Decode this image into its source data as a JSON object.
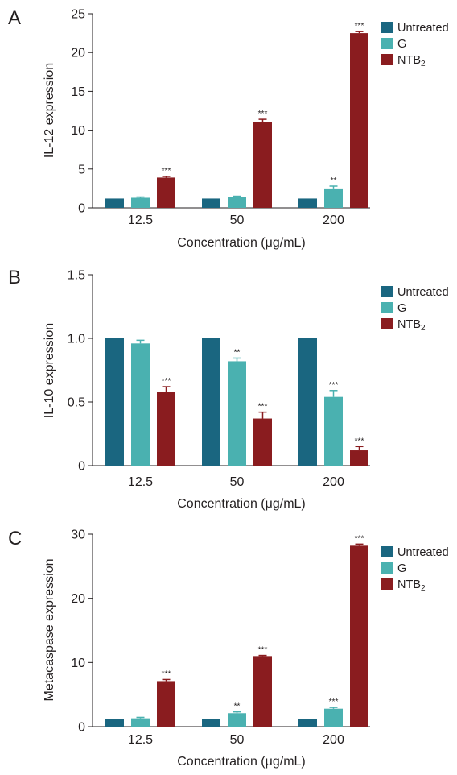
{
  "legend": {
    "labels": [
      "Untreated",
      "G",
      "NTB"
    ],
    "ntb_subscript": "2"
  },
  "colors": {
    "Untreated": "#1a6680",
    "G": "#4ab1b0",
    "NTB": "#8a1c1f"
  },
  "chart_data": [
    {
      "panel": "A",
      "type": "bar",
      "xlabel": "Concentration (μg/mL)",
      "ylabel": "IL-12 expression",
      "categories": [
        "12.5",
        "50",
        "200"
      ],
      "ylim": [
        0,
        25
      ],
      "yticks": [
        0,
        5,
        10,
        15,
        20,
        25
      ],
      "series": [
        {
          "name": "Untreated",
          "values": [
            1.2,
            1.2,
            1.2
          ],
          "errors": [
            0,
            0,
            0
          ],
          "sig": [
            "",
            "",
            ""
          ]
        },
        {
          "name": "G",
          "values": [
            1.3,
            1.4,
            2.5
          ],
          "errors": [
            0.1,
            0.1,
            0.3
          ],
          "sig": [
            "",
            "",
            "**"
          ]
        },
        {
          "name": "NTB2",
          "values": [
            3.9,
            11.0,
            22.5
          ],
          "errors": [
            0.15,
            0.4,
            0.2
          ],
          "sig": [
            "***",
            "***",
            "***"
          ]
        }
      ],
      "grid": false,
      "legend_position": "top-right"
    },
    {
      "panel": "B",
      "type": "bar",
      "xlabel": "Concentration (μg/mL)",
      "ylabel": "IL-10 expression",
      "categories": [
        "12.5",
        "50",
        "200"
      ],
      "ylim": [
        0,
        1.5
      ],
      "yticks": [
        0,
        0.5,
        1.0,
        1.5
      ],
      "ytick_labels": [
        "0",
        "0.5",
        "1.0",
        "1.5"
      ],
      "series": [
        {
          "name": "Untreated",
          "values": [
            1.0,
            1.0,
            1.0
          ],
          "errors": [
            0,
            0,
            0
          ],
          "sig": [
            "",
            "",
            ""
          ]
        },
        {
          "name": "G",
          "values": [
            0.96,
            0.82,
            0.54
          ],
          "errors": [
            0.025,
            0.025,
            0.05
          ],
          "sig": [
            "",
            "**",
            "***"
          ]
        },
        {
          "name": "NTB2",
          "values": [
            0.58,
            0.37,
            0.12
          ],
          "errors": [
            0.04,
            0.05,
            0.03
          ],
          "sig": [
            "***",
            "***",
            "***"
          ]
        }
      ],
      "grid": false,
      "legend_position": "top-right"
    },
    {
      "panel": "C",
      "type": "bar",
      "xlabel": "Concentration (μg/mL)",
      "ylabel": "Metacaspase expression",
      "categories": [
        "12.5",
        "50",
        "200"
      ],
      "ylim": [
        0,
        30
      ],
      "yticks": [
        0,
        10,
        20,
        30
      ],
      "series": [
        {
          "name": "Untreated",
          "values": [
            1.2,
            1.2,
            1.2
          ],
          "errors": [
            0,
            0,
            0
          ],
          "sig": [
            "",
            "",
            ""
          ]
        },
        {
          "name": "G",
          "values": [
            1.3,
            2.1,
            2.8
          ],
          "errors": [
            0.15,
            0.2,
            0.2
          ],
          "sig": [
            "",
            "**",
            "***"
          ]
        },
        {
          "name": "NTB2",
          "values": [
            7.1,
            11.0,
            28.2
          ],
          "errors": [
            0.25,
            0.1,
            0.25
          ],
          "sig": [
            "***",
            "***",
            "***"
          ]
        }
      ],
      "grid": false,
      "legend_position": "top-right"
    }
  ]
}
